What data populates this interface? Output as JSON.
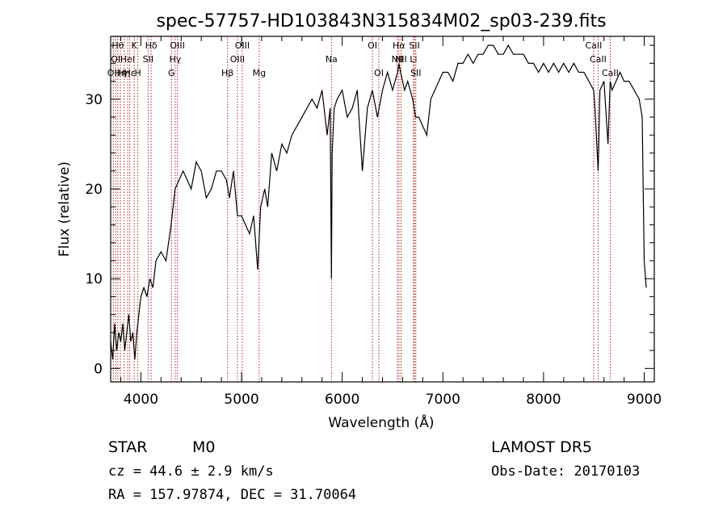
{
  "chart_data": {
    "type": "line",
    "title": "spec-57757-HD103843N315834M02_sp03-239.fits",
    "xlabel": "Wavelength (Å)",
    "ylabel": "Flux (relative)",
    "xlim": [
      3700,
      9100
    ],
    "ylim": [
      -1.5,
      37
    ],
    "xticks": [
      4000,
      5000,
      6000,
      7000,
      8000,
      9000
    ],
    "yticks": [
      0,
      10,
      20,
      30
    ],
    "grid": false,
    "series": [
      {
        "color": "#000000",
        "x": [
          3700,
          3720,
          3740,
          3760,
          3780,
          3800,
          3820,
          3840,
          3860,
          3880,
          3900,
          3920,
          3940,
          3960,
          3980,
          4000,
          4030,
          4060,
          4090,
          4120,
          4150,
          4200,
          4250,
          4300,
          4340,
          4380,
          4420,
          4460,
          4500,
          4550,
          4600,
          4650,
          4700,
          4750,
          4800,
          4850,
          4880,
          4920,
          4960,
          5000,
          5040,
          5080,
          5120,
          5160,
          5190,
          5230,
          5260,
          5300,
          5350,
          5400,
          5450,
          5500,
          5550,
          5600,
          5650,
          5700,
          5750,
          5800,
          5850,
          5880,
          5893,
          5900,
          5920,
          5950,
          6000,
          6050,
          6100,
          6150,
          6200,
          6250,
          6300,
          6350,
          6400,
          6450,
          6500,
          6550,
          6563,
          6580,
          6620,
          6650,
          6700,
          6730,
          6760,
          6800,
          6840,
          6880,
          6920,
          6960,
          7000,
          7050,
          7100,
          7150,
          7200,
          7250,
          7300,
          7350,
          7400,
          7450,
          7500,
          7550,
          7600,
          7650,
          7700,
          7750,
          7800,
          7850,
          7900,
          7950,
          8000,
          8050,
          8100,
          8150,
          8200,
          8250,
          8300,
          8350,
          8400,
          8450,
          8498,
          8510,
          8542,
          8560,
          8600,
          8640,
          8662,
          8680,
          8720,
          8760,
          8800,
          8850,
          8900,
          8950,
          8980,
          9000,
          9020
        ],
        "y": [
          3,
          1,
          5,
          2,
          4,
          3,
          5,
          2,
          4,
          6,
          3,
          4,
          1,
          4,
          6,
          8,
          9,
          8,
          10,
          9,
          12,
          13,
          12,
          16,
          20,
          21,
          22,
          21,
          20,
          23,
          22,
          19,
          20,
          22,
          22,
          21,
          19,
          22,
          17,
          17,
          16,
          15,
          17,
          11,
          18,
          20,
          18,
          24,
          22,
          25,
          24,
          26,
          27,
          28,
          29,
          30,
          29,
          31,
          26,
          29,
          10,
          24,
          29,
          30,
          31,
          28,
          29,
          31,
          22,
          29,
          31,
          28,
          31,
          33,
          31,
          33,
          34,
          33,
          31,
          32,
          30,
          28,
          28,
          27,
          26,
          30,
          31,
          32,
          33,
          33,
          32,
          34,
          34,
          35,
          34,
          35,
          35,
          36,
          36,
          35,
          35,
          36,
          35,
          35,
          35,
          34,
          34,
          33,
          34,
          33,
          34,
          33,
          34,
          33,
          34,
          33,
          33,
          32,
          31,
          29,
          22,
          31,
          32,
          25,
          32,
          31,
          32,
          33,
          32,
          32,
          31,
          30,
          28,
          12,
          9
        ]
      }
    ],
    "lines": [
      {
        "wavelength": 3727,
        "label": "OII",
        "row": 3
      },
      {
        "wavelength": 3750,
        "label": "OI",
        "row": 2
      },
      {
        "wavelength": 3771,
        "label": "Hθ",
        "row": 1
      },
      {
        "wavelength": 3797,
        "label": "Hη",
        "row": 3
      },
      {
        "wavelength": 3835,
        "label": "Hη",
        "row": 3
      },
      {
        "wavelength": 3869,
        "label": "HeI",
        "row": 2
      },
      {
        "wavelength": 3889,
        "label": "Hε",
        "row": 3
      },
      {
        "wavelength": 3934,
        "label": "K",
        "row": 1
      },
      {
        "wavelength": 3970,
        "label": "H",
        "row": 3
      },
      {
        "wavelength": 4072,
        "label": "SII",
        "row": 2
      },
      {
        "wavelength": 4102,
        "label": "Hδ",
        "row": 1
      },
      {
        "wavelength": 4304,
        "label": "G",
        "row": 3
      },
      {
        "wavelength": 4341,
        "label": "Hγ",
        "row": 2
      },
      {
        "wavelength": 4363,
        "label": "OIII",
        "row": 1
      },
      {
        "wavelength": 4861,
        "label": "Hβ",
        "row": 3
      },
      {
        "wavelength": 4959,
        "label": "OIII",
        "row": 2
      },
      {
        "wavelength": 5007,
        "label": "OIII",
        "row": 1
      },
      {
        "wavelength": 5175,
        "label": "Mg",
        "row": 3
      },
      {
        "wavelength": 5893,
        "label": "Na",
        "row": 2
      },
      {
        "wavelength": 6300,
        "label": "OI",
        "row": 1
      },
      {
        "wavelength": 6364,
        "label": "OI",
        "row": 3
      },
      {
        "wavelength": 6548,
        "label": "NII",
        "row": 2
      },
      {
        "wavelength": 6563,
        "label": "Hα",
        "row": 1
      },
      {
        "wavelength": 6584,
        "label": "NII",
        "row": 2
      },
      {
        "wavelength": 6708,
        "label": "Li",
        "row": 2
      },
      {
        "wavelength": 6717,
        "label": "SII",
        "row": 1
      },
      {
        "wavelength": 6731,
        "label": "SII",
        "row": 3
      },
      {
        "wavelength": 8498,
        "label": "CaII",
        "row": 1
      },
      {
        "wavelength": 8542,
        "label": "CaII",
        "row": 2
      },
      {
        "wavelength": 8662,
        "label": "CaII",
        "row": 3
      }
    ]
  },
  "info": {
    "object_class": "STAR",
    "subclass": "M0",
    "survey": "LAMOST DR5",
    "cz": "cz = 44.6 ± 2.9 km/s",
    "obs_date": "Obs-Date: 20170103",
    "coords": "RA = 157.97874, DEC =  31.70064"
  }
}
